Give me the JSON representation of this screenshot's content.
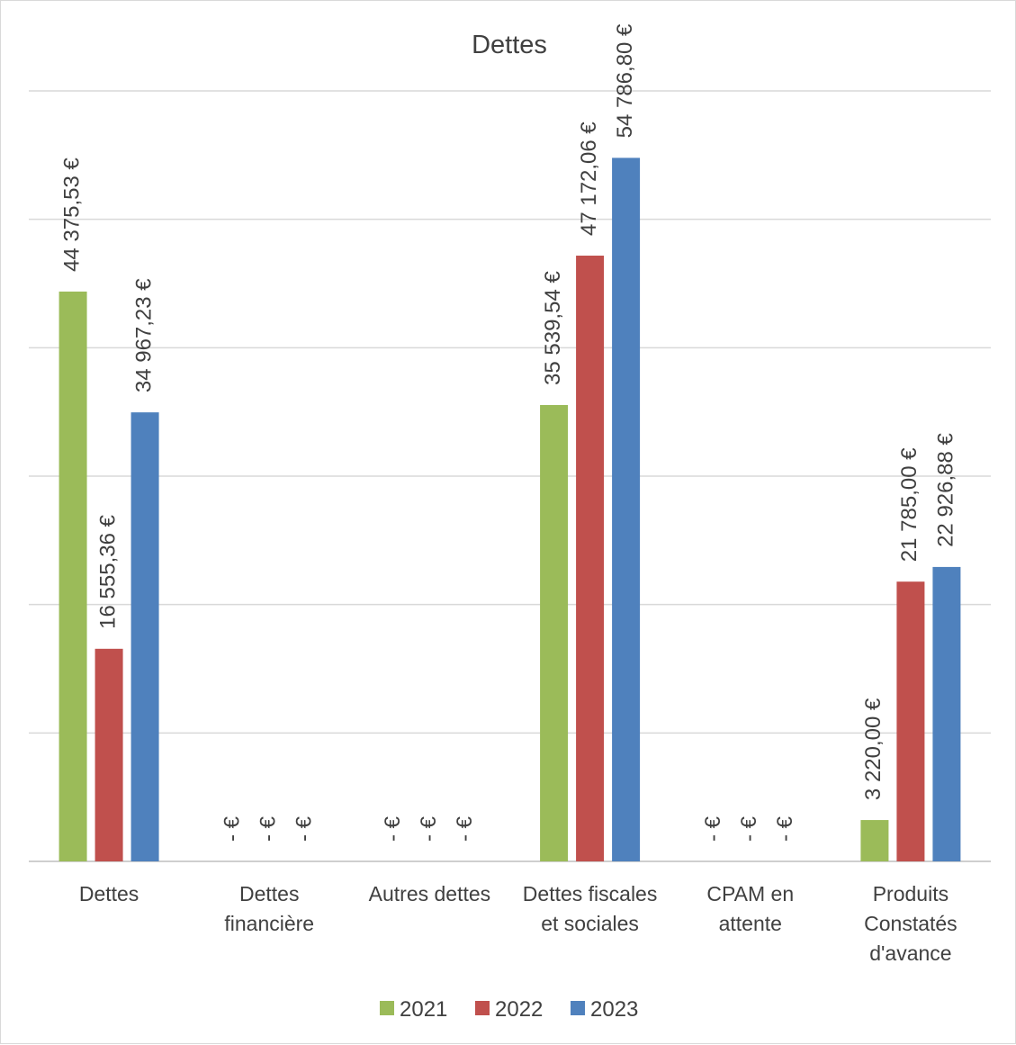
{
  "chart_data": {
    "type": "bar",
    "title": "Dettes",
    "categories": [
      [
        "Dettes"
      ],
      [
        "Dettes",
        "financière"
      ],
      [
        "Autres dettes"
      ],
      [
        "Dettes fiscales",
        "et sociales"
      ],
      [
        "CPAM en",
        "attente"
      ],
      [
        "Produits",
        "Constatés",
        "d'avance"
      ]
    ],
    "series": [
      {
        "name": "2021",
        "color": "#9BBB59",
        "values": [
          44375.53,
          0,
          0,
          35539.54,
          0,
          3220.0
        ],
        "labels": [
          "44 375,53 €",
          "-  €",
          "-  €",
          "35 539,54 €",
          "-  €",
          "3 220,00 €"
        ]
      },
      {
        "name": "2022",
        "color": "#C0504D",
        "values": [
          16555.36,
          0,
          0,
          47172.06,
          0,
          21785.0
        ],
        "labels": [
          "16 555,36 €",
          "-  €",
          "-  €",
          "47 172,06 €",
          "-  €",
          "21 785,00 €"
        ]
      },
      {
        "name": "2023",
        "color": "#4F81BD",
        "values": [
          34967.23,
          0,
          0,
          54786.8,
          0,
          22926.88
        ],
        "labels": [
          "34 967,23 €",
          "-  €",
          "-  €",
          "54 786,80 €",
          "-  €",
          "22 926,88 €"
        ]
      }
    ],
    "ylim": [
      0,
      60000
    ],
    "gridlines": [
      0,
      10000,
      20000,
      30000,
      40000,
      50000,
      60000
    ],
    "grid": true,
    "y_axis_labels_shown": false,
    "data_labels_rotated": true,
    "legend_position": "bottom"
  }
}
